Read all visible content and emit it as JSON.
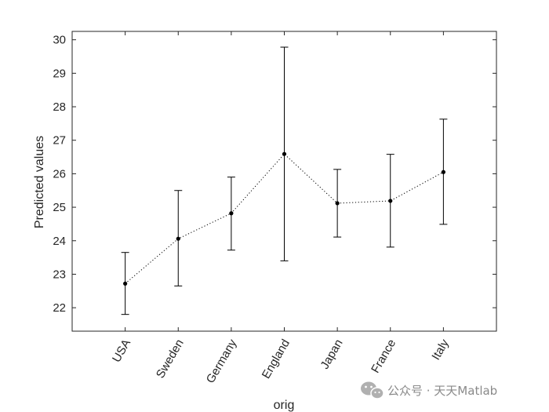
{
  "chart_data": {
    "type": "errorbar-line",
    "categories": [
      "USA",
      "Sweden",
      "Germany",
      "England",
      "Japan",
      "France",
      "Italy"
    ],
    "values": [
      22.72,
      24.06,
      24.82,
      26.59,
      25.12,
      25.19,
      26.05
    ],
    "lower": [
      21.8,
      22.65,
      23.72,
      23.4,
      24.11,
      23.81,
      24.49
    ],
    "upper": [
      23.65,
      25.5,
      25.9,
      29.78,
      26.13,
      26.58,
      27.63
    ],
    "xlabel": "orig",
    "ylabel": "Predicted values",
    "ylim": [
      21.3,
      30.25
    ],
    "yticks": [
      22,
      23,
      24,
      25,
      26,
      27,
      28,
      29,
      30
    ],
    "grid": false,
    "colors": {
      "line": "#000000",
      "axis": "#262626"
    }
  },
  "watermark": {
    "text": "公众号 · 天天Matlab",
    "icon": "wechat-icon"
  }
}
